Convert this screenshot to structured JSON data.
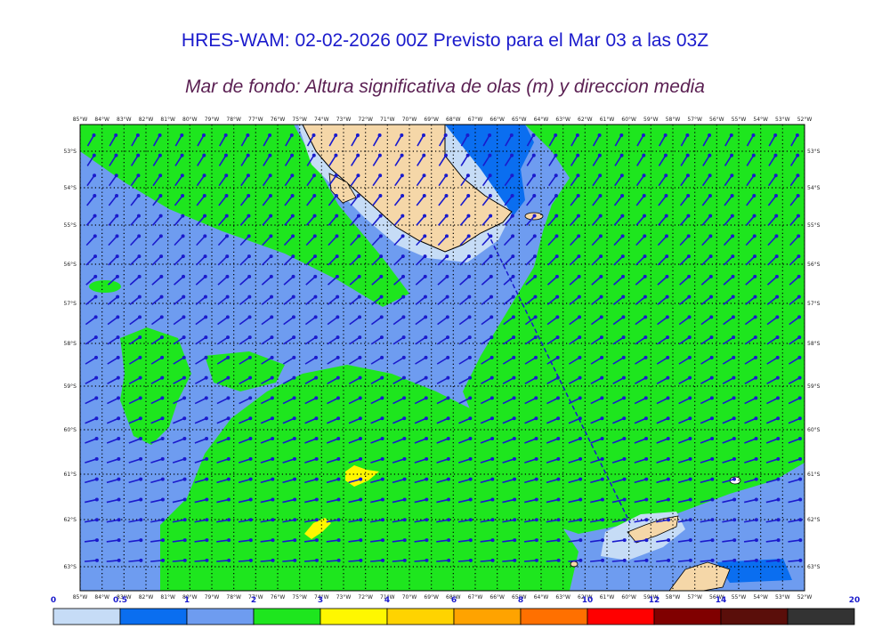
{
  "title": "HRES-WAM: 02-02-2026 00Z Previsto para el Mar 03 a las 03Z",
  "subtitle": "Mar de fondo: Altura significativa de olas (m) y direccion media",
  "lon_labels": [
    "85°W",
    "84°W",
    "83°W",
    "82°W",
    "81°W",
    "80°W",
    "79°W",
    "78°W",
    "77°W",
    "76°W",
    "75°W",
    "74°W",
    "73°W",
    "72°W",
    "71°W",
    "70°W",
    "69°W",
    "68°W",
    "67°W",
    "66°W",
    "65°W",
    "64°W",
    "63°W",
    "62°W",
    "61°W",
    "60°W",
    "59°W",
    "58°W",
    "57°W",
    "56°W",
    "55°W",
    "54°W",
    "53°W",
    "52°W"
  ],
  "lat_labels": [
    "53°S",
    "54°S",
    "55°S",
    "56°S",
    "57°S",
    "58°S",
    "59°S",
    "60°S",
    "61°S",
    "62°S",
    "63°S"
  ],
  "colorbar": {
    "labels": [
      "0",
      "0.5",
      "1",
      "2",
      "3",
      "4",
      "6",
      "8",
      "10",
      "12",
      "14",
      "20"
    ],
    "colors": [
      "#c6dcf6",
      "#0a6ef0",
      "#6e9cf0",
      "#1ee61e",
      "#fff700",
      "#ffd300",
      "#ffa300",
      "#ff7000",
      "#ff0000",
      "#800000",
      "#5a0e0a",
      "#333333"
    ]
  },
  "colors": {
    "ocean_low": "#6e9cf0",
    "ocean_mid": "#1ee61e",
    "land": "#f5d7a8",
    "arrow": "#1a1acc"
  }
}
